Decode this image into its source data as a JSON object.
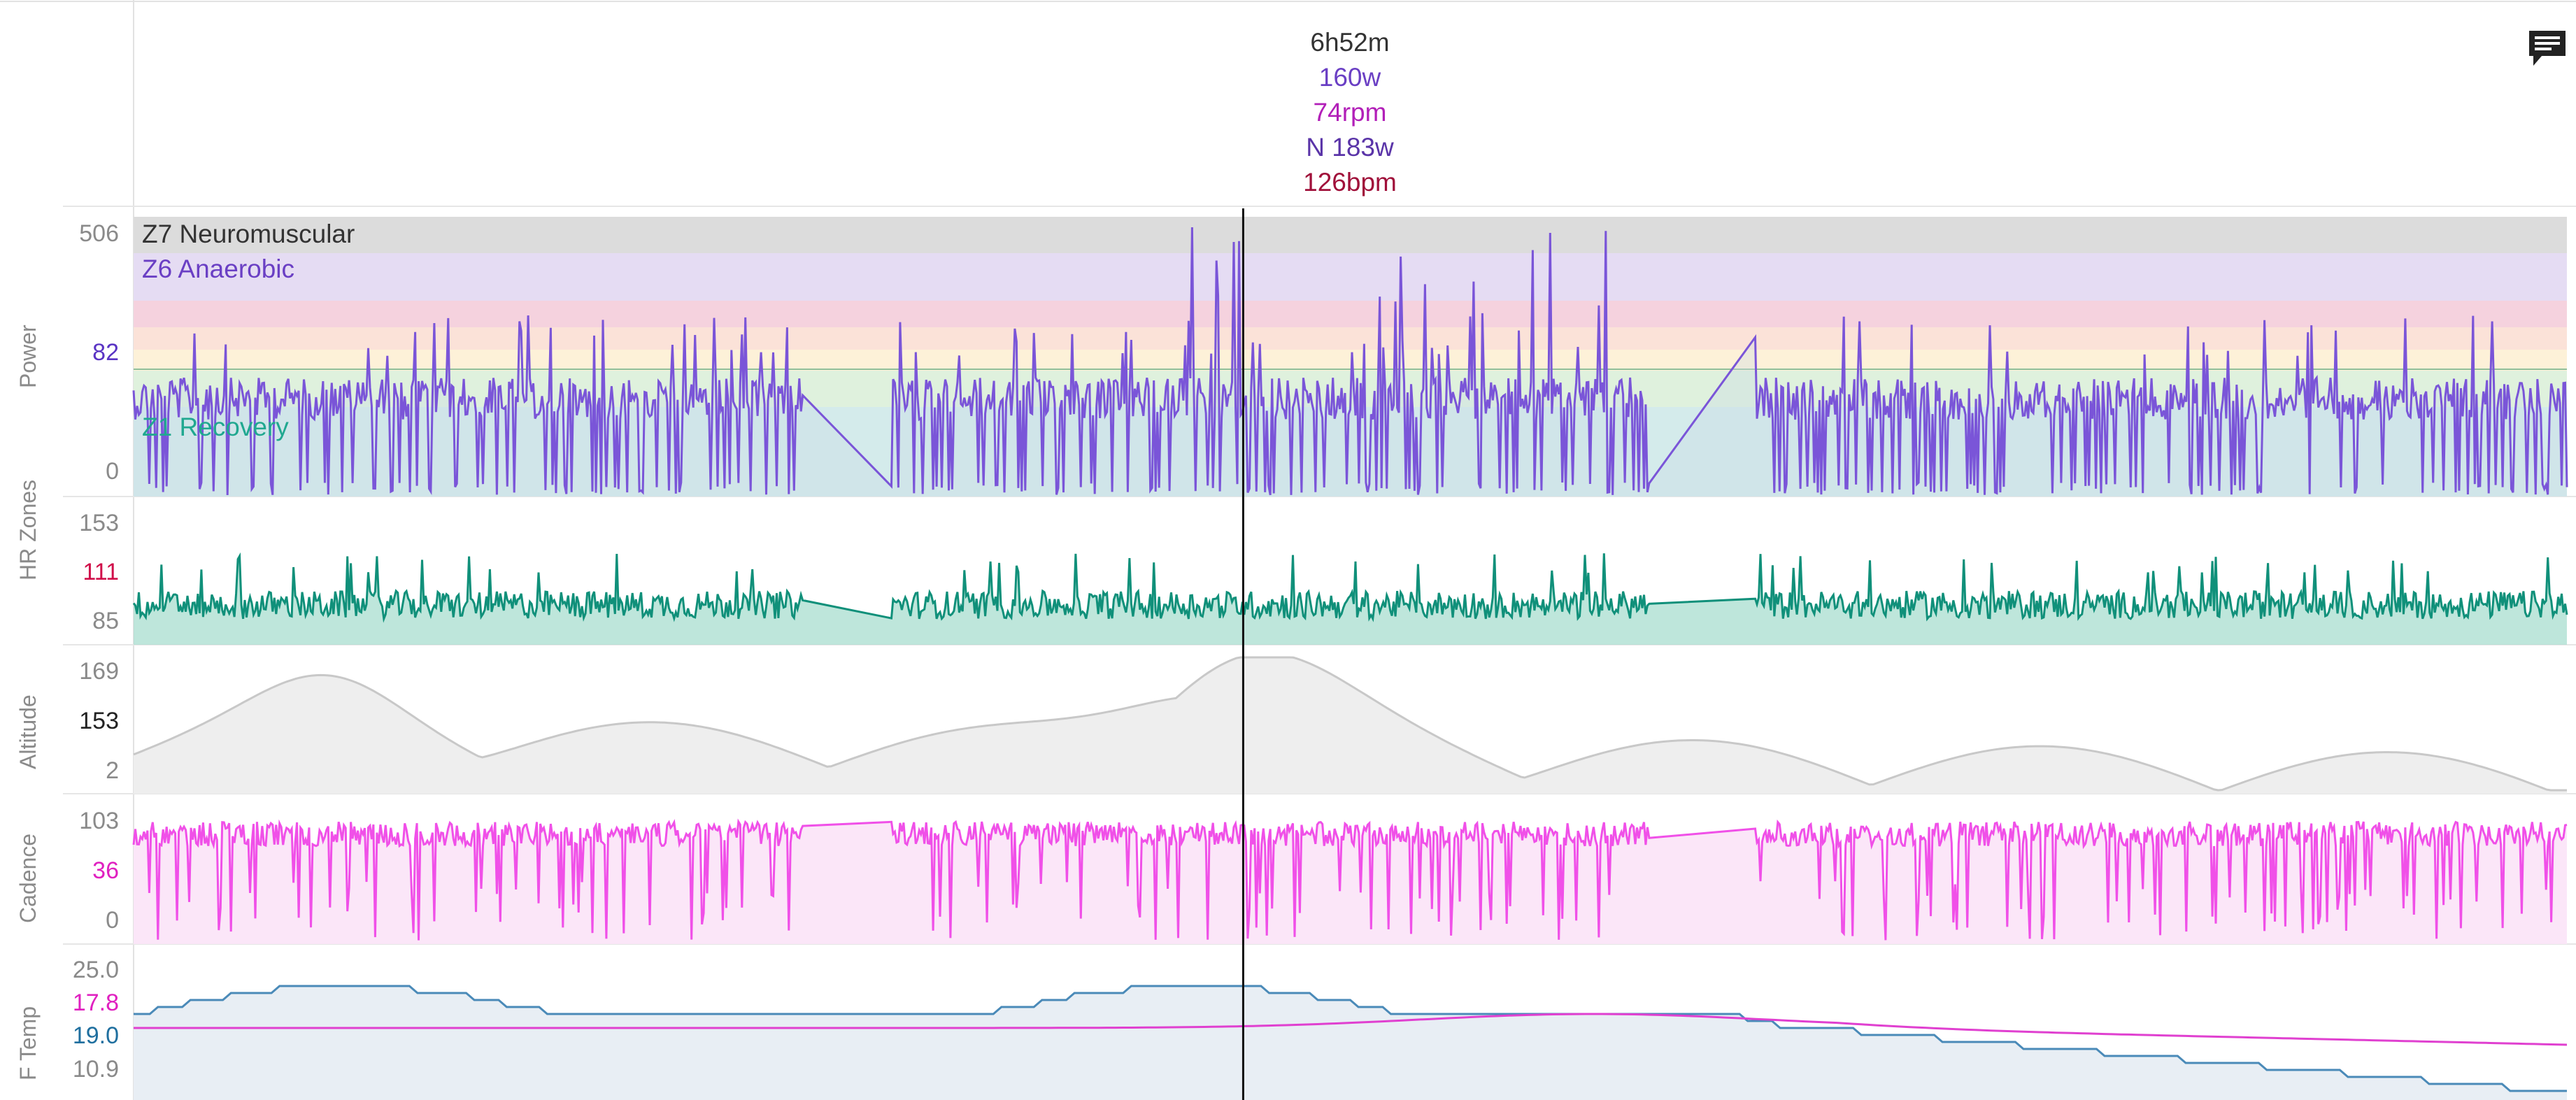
{
  "tooltip": {
    "time": "6h52m",
    "power": "160w",
    "cadence": "74rpm",
    "normalized_power": "N 183w",
    "heart_rate": "126bpm",
    "colors": {
      "time": "#333333",
      "power": "#6a3fc4",
      "cadence": "#b21fb8",
      "normalized_power": "#5a34a8",
      "heart_rate": "#a0103a"
    }
  },
  "panels": {
    "power": {
      "title": "Power",
      "ticks": [
        {
          "label": "506",
          "color": "#8a8a8a"
        },
        {
          "label": "82",
          "color": "#5a34c4"
        },
        {
          "label": "0",
          "color": "#8a8a8a"
        }
      ],
      "zones": [
        {
          "label": "Z7 Neuromuscular",
          "color": "#333333"
        },
        {
          "label": "Z6 Anaerobic",
          "color": "#6a3fc4"
        },
        {
          "label": "Z1 Recovery",
          "color": "#20a890"
        }
      ],
      "line_color": "#7a55d8"
    },
    "hr": {
      "title": "HR Zones",
      "ticks": [
        {
          "label": "153",
          "color": "#8a8a8a"
        },
        {
          "label": "111",
          "color": "#d0104a"
        },
        {
          "label": "85",
          "color": "#8a8a8a"
        }
      ],
      "line_color": "#10907a",
      "fill_color": "#aee0d2"
    },
    "altitude": {
      "title": "Altitude",
      "ticks": [
        {
          "label": "169",
          "color": "#8a8a8a"
        },
        {
          "label": "153",
          "color": "#222222"
        },
        {
          "label": "2",
          "color": "#8a8a8a"
        }
      ],
      "line_color": "#c8c8c8",
      "fill_color": "#eeeeee"
    },
    "cadence": {
      "title": "Cadence",
      "ticks": [
        {
          "label": "103",
          "color": "#8a8a8a"
        },
        {
          "label": "36",
          "color": "#e020c0"
        },
        {
          "label": "0",
          "color": "#8a8a8a"
        }
      ],
      "line_color": "#f050e8",
      "fill_color": "#fbe6f8"
    },
    "ftemp": {
      "title": "F Temp",
      "ticks": [
        {
          "label": "25.0",
          "color": "#8a8a8a"
        },
        {
          "label": "17.8",
          "color": "#e020c0"
        },
        {
          "label": "19.0",
          "color": "#1f6f9f"
        },
        {
          "label": "10.9",
          "color": "#8a8a8a"
        }
      ],
      "line_color": "#4a8ab8",
      "line2_color": "#e040d0",
      "fill_color": "#e8eef4"
    }
  },
  "chart_data": {
    "type": "line",
    "cursor_time": "6h52m",
    "x_fraction_cursor": 0.456,
    "series": [
      {
        "name": "Power",
        "unit": "w",
        "ylim": [
          0,
          506
        ],
        "value_at_cursor": 160
      },
      {
        "name": "HR Zones",
        "unit": "bpm",
        "ylim": [
          85,
          153
        ],
        "value_at_cursor": 126
      },
      {
        "name": "Altitude",
        "ylim": [
          2,
          169
        ]
      },
      {
        "name": "Cadence",
        "unit": "rpm",
        "ylim": [
          0,
          103
        ],
        "value_at_cursor": 74
      },
      {
        "name": "F Temp",
        "ylim": [
          10.9,
          25.0
        ]
      }
    ]
  },
  "notes_icon": "notes-icon"
}
